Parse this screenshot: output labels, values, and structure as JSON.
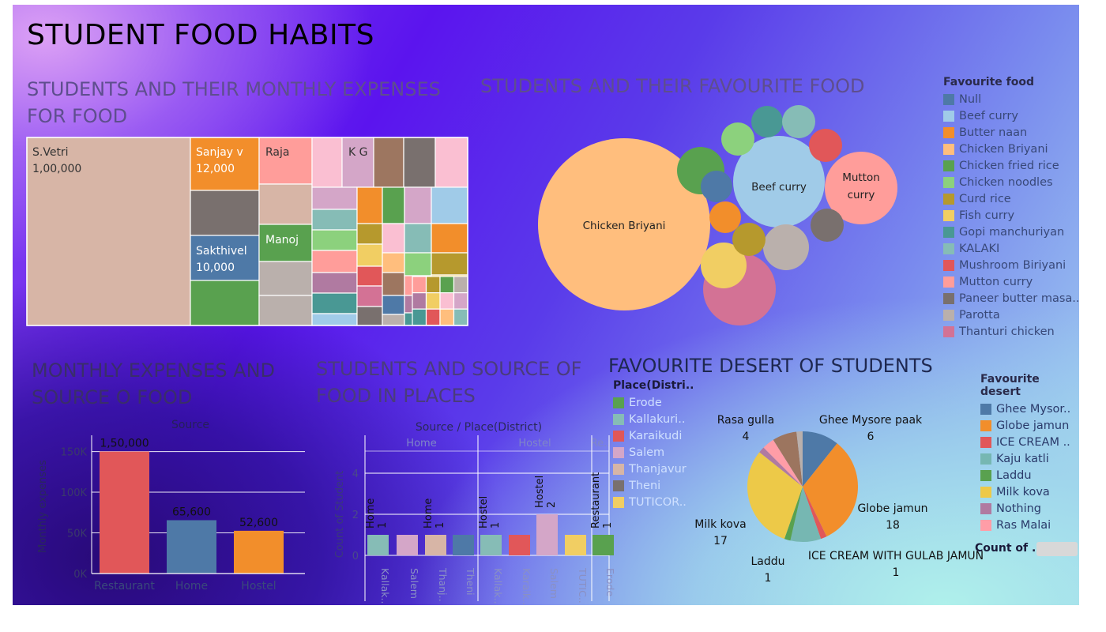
{
  "dashboard_title": "STUDENT FOOD HABITS",
  "chart_data": [
    {
      "type": "treemap",
      "title": "STUDENTS AND THEIR MONTHLY EXPENSES FOR FOOD",
      "labeled": [
        {
          "name": "S.Vetri",
          "value_label": "1,00,000",
          "value": 100000
        },
        {
          "name": "Sanjay v",
          "value_label": "12,000",
          "value": 12000
        },
        {
          "name": "Sakthivel",
          "value_label": "10,000",
          "value": 10000
        },
        {
          "name": "Raja",
          "value_label": "",
          "value": null
        },
        {
          "name": "Manoj",
          "value_label": "",
          "value": null
        },
        {
          "name": "K G",
          "value_label": "",
          "value": null
        }
      ]
    },
    {
      "type": "bubble",
      "title": "STUDENTS AND THEIR FAVOURITE FOOD",
      "legend_title": "Favourite food",
      "legend": [
        {
          "name": "Null",
          "color": "#4e79a7"
        },
        {
          "name": "Beef curry",
          "color": "#a0cbe8"
        },
        {
          "name": "Butter naan",
          "color": "#f28e2b"
        },
        {
          "name": "Chicken Briyani",
          "color": "#ffbe7d"
        },
        {
          "name": "Chicken fried rice",
          "color": "#59a14f"
        },
        {
          "name": "Chicken noodles",
          "color": "#8cd17d"
        },
        {
          "name": "Curd rice",
          "color": "#b6992d"
        },
        {
          "name": "Fish curry",
          "color": "#f1ce63"
        },
        {
          "name": "Gopi manchuriyan",
          "color": "#499894"
        },
        {
          "name": "KALAKI",
          "color": "#86bcb6"
        },
        {
          "name": "Mushroom Biriyani",
          "color": "#e15759"
        },
        {
          "name": "Mutton curry",
          "color": "#ff9d9a"
        },
        {
          "name": "Paneer butter masa..",
          "color": "#79706e"
        },
        {
          "name": "Parotta",
          "color": "#bab0ac"
        },
        {
          "name": "Thanturi chicken",
          "color": "#d37295"
        }
      ],
      "bubble_labels": {
        "big": "Chicken Briyani",
        "beef": "Beef curry",
        "mutton1": "Mutton",
        "mutton2": "curry"
      }
    },
    {
      "type": "bar",
      "title": "MONTHLY EXPENSES AND SOURCE O FOOD",
      "header": "Source",
      "ylabel": "Monthly expenses",
      "categories": [
        "Restaurant",
        "Home",
        "Hostel"
      ],
      "values": [
        150000,
        65600,
        52600
      ],
      "value_labels": [
        "1,50,000",
        "65,600",
        "52,600"
      ],
      "yticks": [
        "0K",
        "50K",
        "100K",
        "150K"
      ],
      "ylim": [
        0,
        170000
      ],
      "colors": [
        "#e15759",
        "#4e79a7",
        "#f28e2b"
      ]
    },
    {
      "type": "bar",
      "title": "STUDENTS AND SOURCE OF FOOD IN PLACES",
      "header": "Source / Place(District)",
      "groups": [
        "Home",
        "Hostel",
        "Re.."
      ],
      "ylabel": "Count of Student",
      "yticks": [
        "0",
        "2",
        "4"
      ],
      "ylim": [
        0,
        5
      ],
      "bars": [
        {
          "group": 0,
          "place": "Kallak..",
          "value": 1,
          "color": "#86bcb6"
        },
        {
          "group": 0,
          "place": "Salem",
          "value": 1,
          "color": "#d4a6c8"
        },
        {
          "group": 0,
          "place": "Thanj..",
          "value": 1,
          "color": "#d7b5a6"
        },
        {
          "group": 0,
          "place": "Theni",
          "value": 1,
          "color": "#4e79a7"
        },
        {
          "group": 1,
          "place": "Kallak..",
          "value": 1,
          "color": "#86bcb6"
        },
        {
          "group": 1,
          "place": "Karaik..",
          "value": 1,
          "color": "#e15759"
        },
        {
          "group": 1,
          "place": "Salem",
          "value": 2,
          "color": "#d4a6c8"
        },
        {
          "group": 1,
          "place": "TUTIC..",
          "value": 1,
          "color": "#f1ce63"
        },
        {
          "group": 2,
          "place": "Erode",
          "value": 1,
          "color": "#59a14f"
        }
      ],
      "bar_labels": [
        {
          "bar": 0,
          "source": "Home",
          "count": "1"
        },
        {
          "bar": 2,
          "source": "Home",
          "count": "1"
        },
        {
          "bar": 4,
          "source": "Hostel",
          "count": "1"
        },
        {
          "bar": 6,
          "source": "Hostel",
          "count": "2"
        },
        {
          "bar": 8,
          "source": "Restaurant",
          "count": "1"
        }
      ],
      "legend_title": "Place(Distri..",
      "legend": [
        {
          "name": "Erode",
          "color": "#59a14f"
        },
        {
          "name": "Kallakuri..",
          "color": "#86bcb6"
        },
        {
          "name": "Karaikudi",
          "color": "#e15759"
        },
        {
          "name": "Salem",
          "color": "#d4a6c8"
        },
        {
          "name": "Thanjavur",
          "color": "#d7b5a6"
        },
        {
          "name": "Theni",
          "color": "#79706e"
        },
        {
          "name": "TUTICOR..",
          "color": "#f1ce63"
        }
      ]
    },
    {
      "type": "pie",
      "title": "FAVOURITE DESERT OF STUDENTS",
      "slices": [
        {
          "name": "Ghee Mysore paak",
          "value": 6,
          "color": "#4e79a7"
        },
        {
          "name": "Globe jamun",
          "value": 18,
          "color": "#f28e2b"
        },
        {
          "name": "ICE CREAM WITH GULAB JAMUN",
          "value": 1,
          "color": "#e15759"
        },
        {
          "name": "Kaju katli",
          "value": 5,
          "color": "#76b7b2"
        },
        {
          "name": "Laddu",
          "value": 1,
          "color": "#59a14f"
        },
        {
          "name": "Milk kova",
          "value": 17,
          "color": "#edc948"
        },
        {
          "name": "Nothing",
          "value": 1,
          "color": "#b07aa1"
        },
        {
          "name": "Ras Malai",
          "value": 2,
          "color": "#ff9da7"
        },
        {
          "name": "Rasa gulla",
          "value": 4,
          "color": "#9c755f"
        },
        {
          "name": "",
          "value": 1,
          "color": "#bab0ac"
        }
      ],
      "legend_title": "Favourite desert",
      "legend": [
        {
          "name": "Ghee Mysor..",
          "color": "#4e79a7"
        },
        {
          "name": "Globe jamun",
          "color": "#f28e2b"
        },
        {
          "name": "ICE CREAM ..",
          "color": "#e15759"
        },
        {
          "name": "Kaju katli",
          "color": "#76b7b2"
        },
        {
          "name": "Laddu",
          "color": "#59a14f"
        },
        {
          "name": "Milk kova",
          "color": "#edc948"
        },
        {
          "name": "Nothing",
          "color": "#b07aa1"
        },
        {
          "name": "Ras Malai",
          "color": "#ff9da7"
        },
        {
          "name": "Rasa gulla",
          "color": "#9c755f"
        }
      ],
      "labels": [
        {
          "name": "Rasa gulla",
          "count": "4"
        },
        {
          "name": "Ghee Mysore paak",
          "count": "6"
        },
        {
          "name": "Globe jamun",
          "count": "18"
        },
        {
          "name": "Milk kova",
          "count": "17"
        },
        {
          "name": "Laddu",
          "count": "1"
        },
        {
          "name": "ICE CREAM WITH GULAB JAMUN",
          "count": "1"
        }
      ],
      "count_label": "Count of .."
    }
  ]
}
